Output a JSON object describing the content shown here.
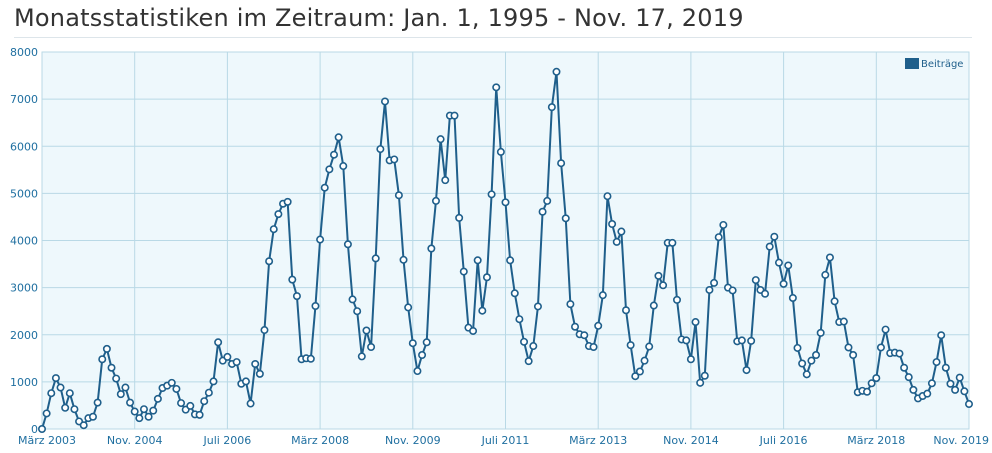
{
  "page": {
    "title": "Monatsstatistiken im Zeitraum: Jan. 1, 1995 - Nov. 17, 2019"
  },
  "colors": {
    "plot_background": "#eef8fc",
    "line": "#1f5f8b",
    "marker_fill": "#ffffff",
    "grid": "#b9d9e6",
    "axis_text": "#1f6fa0",
    "legend_swatch": "#1f5f8b"
  },
  "chart_data": {
    "type": "line",
    "title": "",
    "xlabel": "",
    "ylabel": "",
    "ylim": [
      0,
      8000
    ],
    "yticks": [
      0,
      1000,
      2000,
      3000,
      4000,
      5000,
      6000,
      7000,
      8000
    ],
    "xlim": [
      "2003-03",
      "2019-11"
    ],
    "xtick_labels": [
      "März 2003",
      "Nov. 2004",
      "Juli 2006",
      "März 2008",
      "Nov. 2009",
      "Juli 2011",
      "März 2013",
      "Nov. 2014",
      "Juli 2016",
      "März 2018",
      "Nov. 2019"
    ],
    "grid": true,
    "legend": "top-right",
    "series": [
      {
        "name": "Beiträge",
        "start": "2003-03",
        "frequency": "monthly",
        "values": [
          0,
          330,
          760,
          1080,
          880,
          450,
          760,
          420,
          160,
          80,
          230,
          260,
          560,
          1480,
          1700,
          1300,
          1070,
          740,
          880,
          560,
          370,
          230,
          420,
          260,
          390,
          640,
          870,
          920,
          980,
          850,
          550,
          410,
          490,
          310,
          300,
          590,
          770,
          1010,
          1840,
          1450,
          1530,
          1380,
          1420,
          960,
          1010,
          540,
          1380,
          1170,
          2100,
          3560,
          4240,
          4560,
          4780,
          4820,
          3170,
          2820,
          1480,
          1500,
          1490,
          2610,
          4020,
          5120,
          5510,
          5820,
          6190,
          5580,
          3920,
          2750,
          2500,
          1540,
          2090,
          1740,
          3620,
          5940,
          6950,
          5700,
          5720,
          4960,
          3590,
          2580,
          1820,
          1230,
          1570,
          1840,
          3830,
          4840,
          6150,
          5280,
          6650,
          6650,
          4480,
          3340,
          2150,
          2080,
          3580,
          2510,
          3220,
          4980,
          7250,
          5880,
          4810,
          3580,
          2880,
          2330,
          1850,
          1440,
          1760,
          2600,
          4610,
          4840,
          6830,
          7580,
          5640,
          4470,
          2650,
          2170,
          2010,
          1990,
          1760,
          1740,
          2190,
          2840,
          4940,
          4350,
          3970,
          4190,
          2520,
          1780,
          1120,
          1220,
          1450,
          1750,
          2620,
          3250,
          3050,
          3950,
          3950,
          2740,
          1900,
          1880,
          1480,
          2270,
          980,
          1130,
          2950,
          3100,
          4070,
          4330,
          3000,
          2940,
          1860,
          1880,
          1250,
          1870,
          3160,
          2950,
          2870,
          3870,
          4080,
          3530,
          3080,
          3470,
          2780,
          1720,
          1390,
          1160,
          1450,
          1570,
          2040,
          3270,
          3640,
          2710,
          2270,
          2280,
          1730,
          1570,
          780,
          810,
          790,
          970,
          1080,
          1730,
          2110,
          1610,
          1620,
          1600,
          1300,
          1100,
          830,
          650,
          700,
          750,
          970,
          1420,
          1990,
          1300,
          960,
          830,
          1090,
          800,
          530
        ]
      }
    ]
  }
}
